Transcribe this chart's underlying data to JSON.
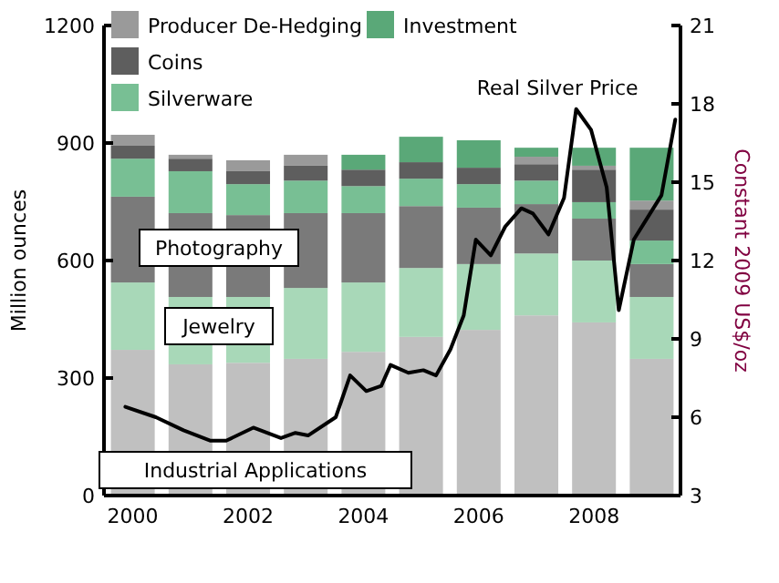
{
  "chart_data": {
    "type": "bar",
    "stacked": true,
    "x": [
      2000,
      2001,
      2002,
      2003,
      2004,
      2005,
      2006,
      2007,
      2008,
      2009
    ],
    "xlim": [
      1999.5,
      2009.5
    ],
    "xticks": [
      2000,
      2002,
      2004,
      2006,
      2008
    ],
    "ylim": [
      0,
      1200
    ],
    "yticks": [
      0,
      300,
      600,
      900,
      1200
    ],
    "y2lim": [
      3,
      21
    ],
    "y2ticks": [
      3,
      6,
      9,
      12,
      15,
      18,
      21
    ],
    "ylabel": "Million ounces",
    "y2label": "Constant 2009 US$/oz",
    "legend": "top left",
    "grid": false,
    "series": [
      {
        "color": "#c0c0c0",
        "values": [
          372,
          335,
          339,
          349,
          367,
          405,
          423,
          460,
          442,
          349
        ]
      },
      {
        "color": "#a8d8b8",
        "values": [
          172,
          172,
          168,
          181,
          177,
          176,
          168,
          158,
          158,
          158
        ]
      },
      {
        "color": "#7a7a7a",
        "values": [
          219,
          214,
          209,
          191,
          177,
          158,
          144,
          126,
          107,
          84
        ]
      },
      {
        "name": "Silverware",
        "color": "#78bf94",
        "values": [
          97,
          107,
          79,
          83,
          69,
          70,
          60,
          60,
          42,
          60
        ]
      },
      {
        "name": "Coins",
        "color": "#5e5e5e",
        "values": [
          33,
          32,
          33,
          38,
          42,
          42,
          42,
          42,
          83,
          79
        ]
      },
      {
        "name": "Producer De-Hedging",
        "color": "#9a9a9a",
        "values": [
          28,
          10,
          28,
          28,
          0,
          0,
          0,
          19,
          10,
          23
        ]
      },
      {
        "name": "Investment",
        "color": "#5aa878",
        "values": [
          0,
          0,
          0,
          0,
          38,
          65,
          70,
          23,
          46,
          135
        ]
      },
      {
        "name": "Real Silver Price",
        "type": "line",
        "axis": "y2",
        "color": "#000000",
        "x": [
          1999.87,
          2000.4,
          2000.88,
          2001.35,
          2001.62,
          2002.09,
          2002.57,
          2002.82,
          2003.04,
          2003.52,
          2003.77,
          2004.05,
          2004.31,
          2004.47,
          2004.78,
          2005.04,
          2005.26,
          2005.51,
          2005.74,
          2005.95,
          2006.21,
          2006.46,
          2006.74,
          2006.94,
          2007.21,
          2007.48,
          2007.69,
          2007.95,
          2008.22,
          2008.43,
          2008.69,
          2009.17,
          2009.41
        ],
        "values": [
          6.4,
          6.0,
          5.5,
          5.1,
          5.1,
          5.6,
          5.2,
          5.4,
          5.3,
          6.0,
          7.6,
          7.0,
          7.2,
          8.0,
          7.7,
          7.8,
          7.6,
          8.6,
          9.9,
          12.8,
          12.2,
          13.3,
          14.0,
          13.8,
          13.0,
          14.4,
          17.8,
          17.0,
          14.8,
          10.1,
          12.8,
          14.5,
          17.4
        ]
      }
    ],
    "annotations": [
      "Photography",
      "Jewelry",
      "Industrial Applications"
    ]
  }
}
